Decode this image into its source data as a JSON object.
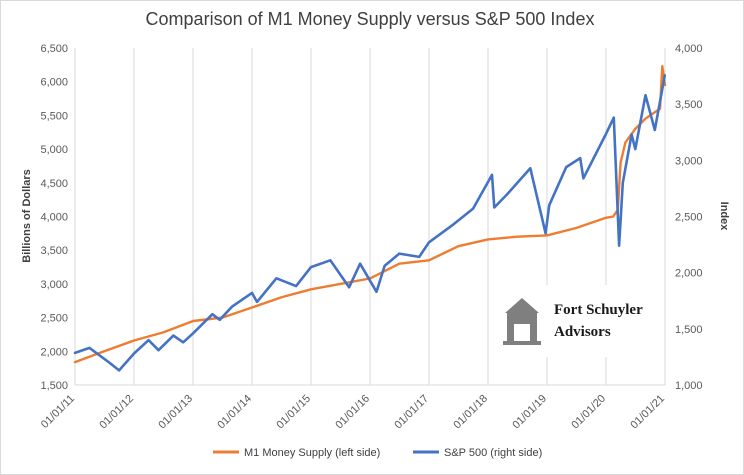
{
  "chart_data": {
    "type": "line",
    "title": "Comparison of M1 Money Supply versus S&P 500 Index",
    "ylabel": "Billions of Dollars",
    "y2label": "Index",
    "ylim": [
      1500,
      6500
    ],
    "y2lim": [
      1000,
      4000
    ],
    "yticks": [
      "1,500",
      "2,000",
      "2,500",
      "3,000",
      "3,500",
      "4,000",
      "4,500",
      "5,000",
      "5,500",
      "6,000",
      "6,500"
    ],
    "y2ticks": [
      "1,000",
      "1,500",
      "2,000",
      "2,500",
      "3,000",
      "3,500",
      "4,000"
    ],
    "xticks": [
      "01/01/11",
      "01/01/12",
      "01/01/13",
      "01/01/14",
      "01/01/15",
      "01/01/16",
      "01/01/17",
      "01/01/18",
      "01/01/19",
      "01/01/20",
      "01/01/21"
    ],
    "grid": "vertical",
    "legend_position": "bottom",
    "series": [
      {
        "name": "M1 Money Supply (left side)",
        "axis": "left",
        "color": "#ed7d31",
        "x": [
          "2011-01-01",
          "2011-07-01",
          "2012-01-01",
          "2012-07-01",
          "2013-01-01",
          "2013-07-01",
          "2014-01-01",
          "2014-07-01",
          "2015-01-01",
          "2015-07-01",
          "2016-01-01",
          "2016-07-01",
          "2017-01-01",
          "2017-07-01",
          "2018-01-01",
          "2018-07-01",
          "2019-01-01",
          "2019-07-01",
          "2020-01-01",
          "2020-02-15",
          "2020-03-15",
          "2020-04-01",
          "2020-05-01",
          "2020-07-01",
          "2020-09-01",
          "2020-11-01",
          "2020-12-01",
          "2020-12-15",
          "2021-01-01"
        ],
        "values": [
          1840,
          2000,
          2160,
          2280,
          2450,
          2500,
          2650,
          2800,
          2920,
          3000,
          3080,
          3300,
          3350,
          3560,
          3660,
          3700,
          3720,
          3830,
          3980,
          4000,
          4100,
          4800,
          5100,
          5300,
          5450,
          5550,
          5600,
          6230,
          5950
        ]
      },
      {
        "name": "S&P 500 (right side)",
        "axis": "right",
        "color": "#4472c4",
        "x": [
          "2011-01-01",
          "2011-04-01",
          "2011-08-01",
          "2011-10-01",
          "2012-01-01",
          "2012-04-01",
          "2012-06-01",
          "2012-09-01",
          "2012-11-01",
          "2013-01-01",
          "2013-05-01",
          "2013-06-15",
          "2013-09-01",
          "2014-01-01",
          "2014-02-01",
          "2014-06-01",
          "2014-10-01",
          "2015-01-01",
          "2015-05-01",
          "2015-08-25",
          "2015-11-01",
          "2016-02-11",
          "2016-04-01",
          "2016-07-01",
          "2016-11-01",
          "2017-01-01",
          "2017-06-01",
          "2017-10-01",
          "2018-01-26",
          "2018-02-09",
          "2018-05-01",
          "2018-09-20",
          "2018-12-24",
          "2019-01-15",
          "2019-04-30",
          "2019-07-26",
          "2019-08-15",
          "2019-12-31",
          "2020-02-19",
          "2020-03-23",
          "2020-04-15",
          "2020-06-08",
          "2020-07-01",
          "2020-09-02",
          "2020-10-30",
          "2020-12-31"
        ],
        "values": [
          1286,
          1330,
          1200,
          1130,
          1280,
          1400,
          1310,
          1440,
          1380,
          1460,
          1630,
          1580,
          1700,
          1820,
          1740,
          1950,
          1880,
          2050,
          2110,
          1870,
          2080,
          1830,
          2060,
          2170,
          2140,
          2270,
          2430,
          2570,
          2870,
          2580,
          2700,
          2930,
          2350,
          2600,
          2940,
          3020,
          2840,
          3230,
          3380,
          2240,
          2800,
          3230,
          3100,
          3580,
          3270,
          3756
        ]
      }
    ]
  },
  "logo": {
    "line1": "Fort Schuyler",
    "line2": "Advisors",
    "icon": "tower-icon"
  }
}
